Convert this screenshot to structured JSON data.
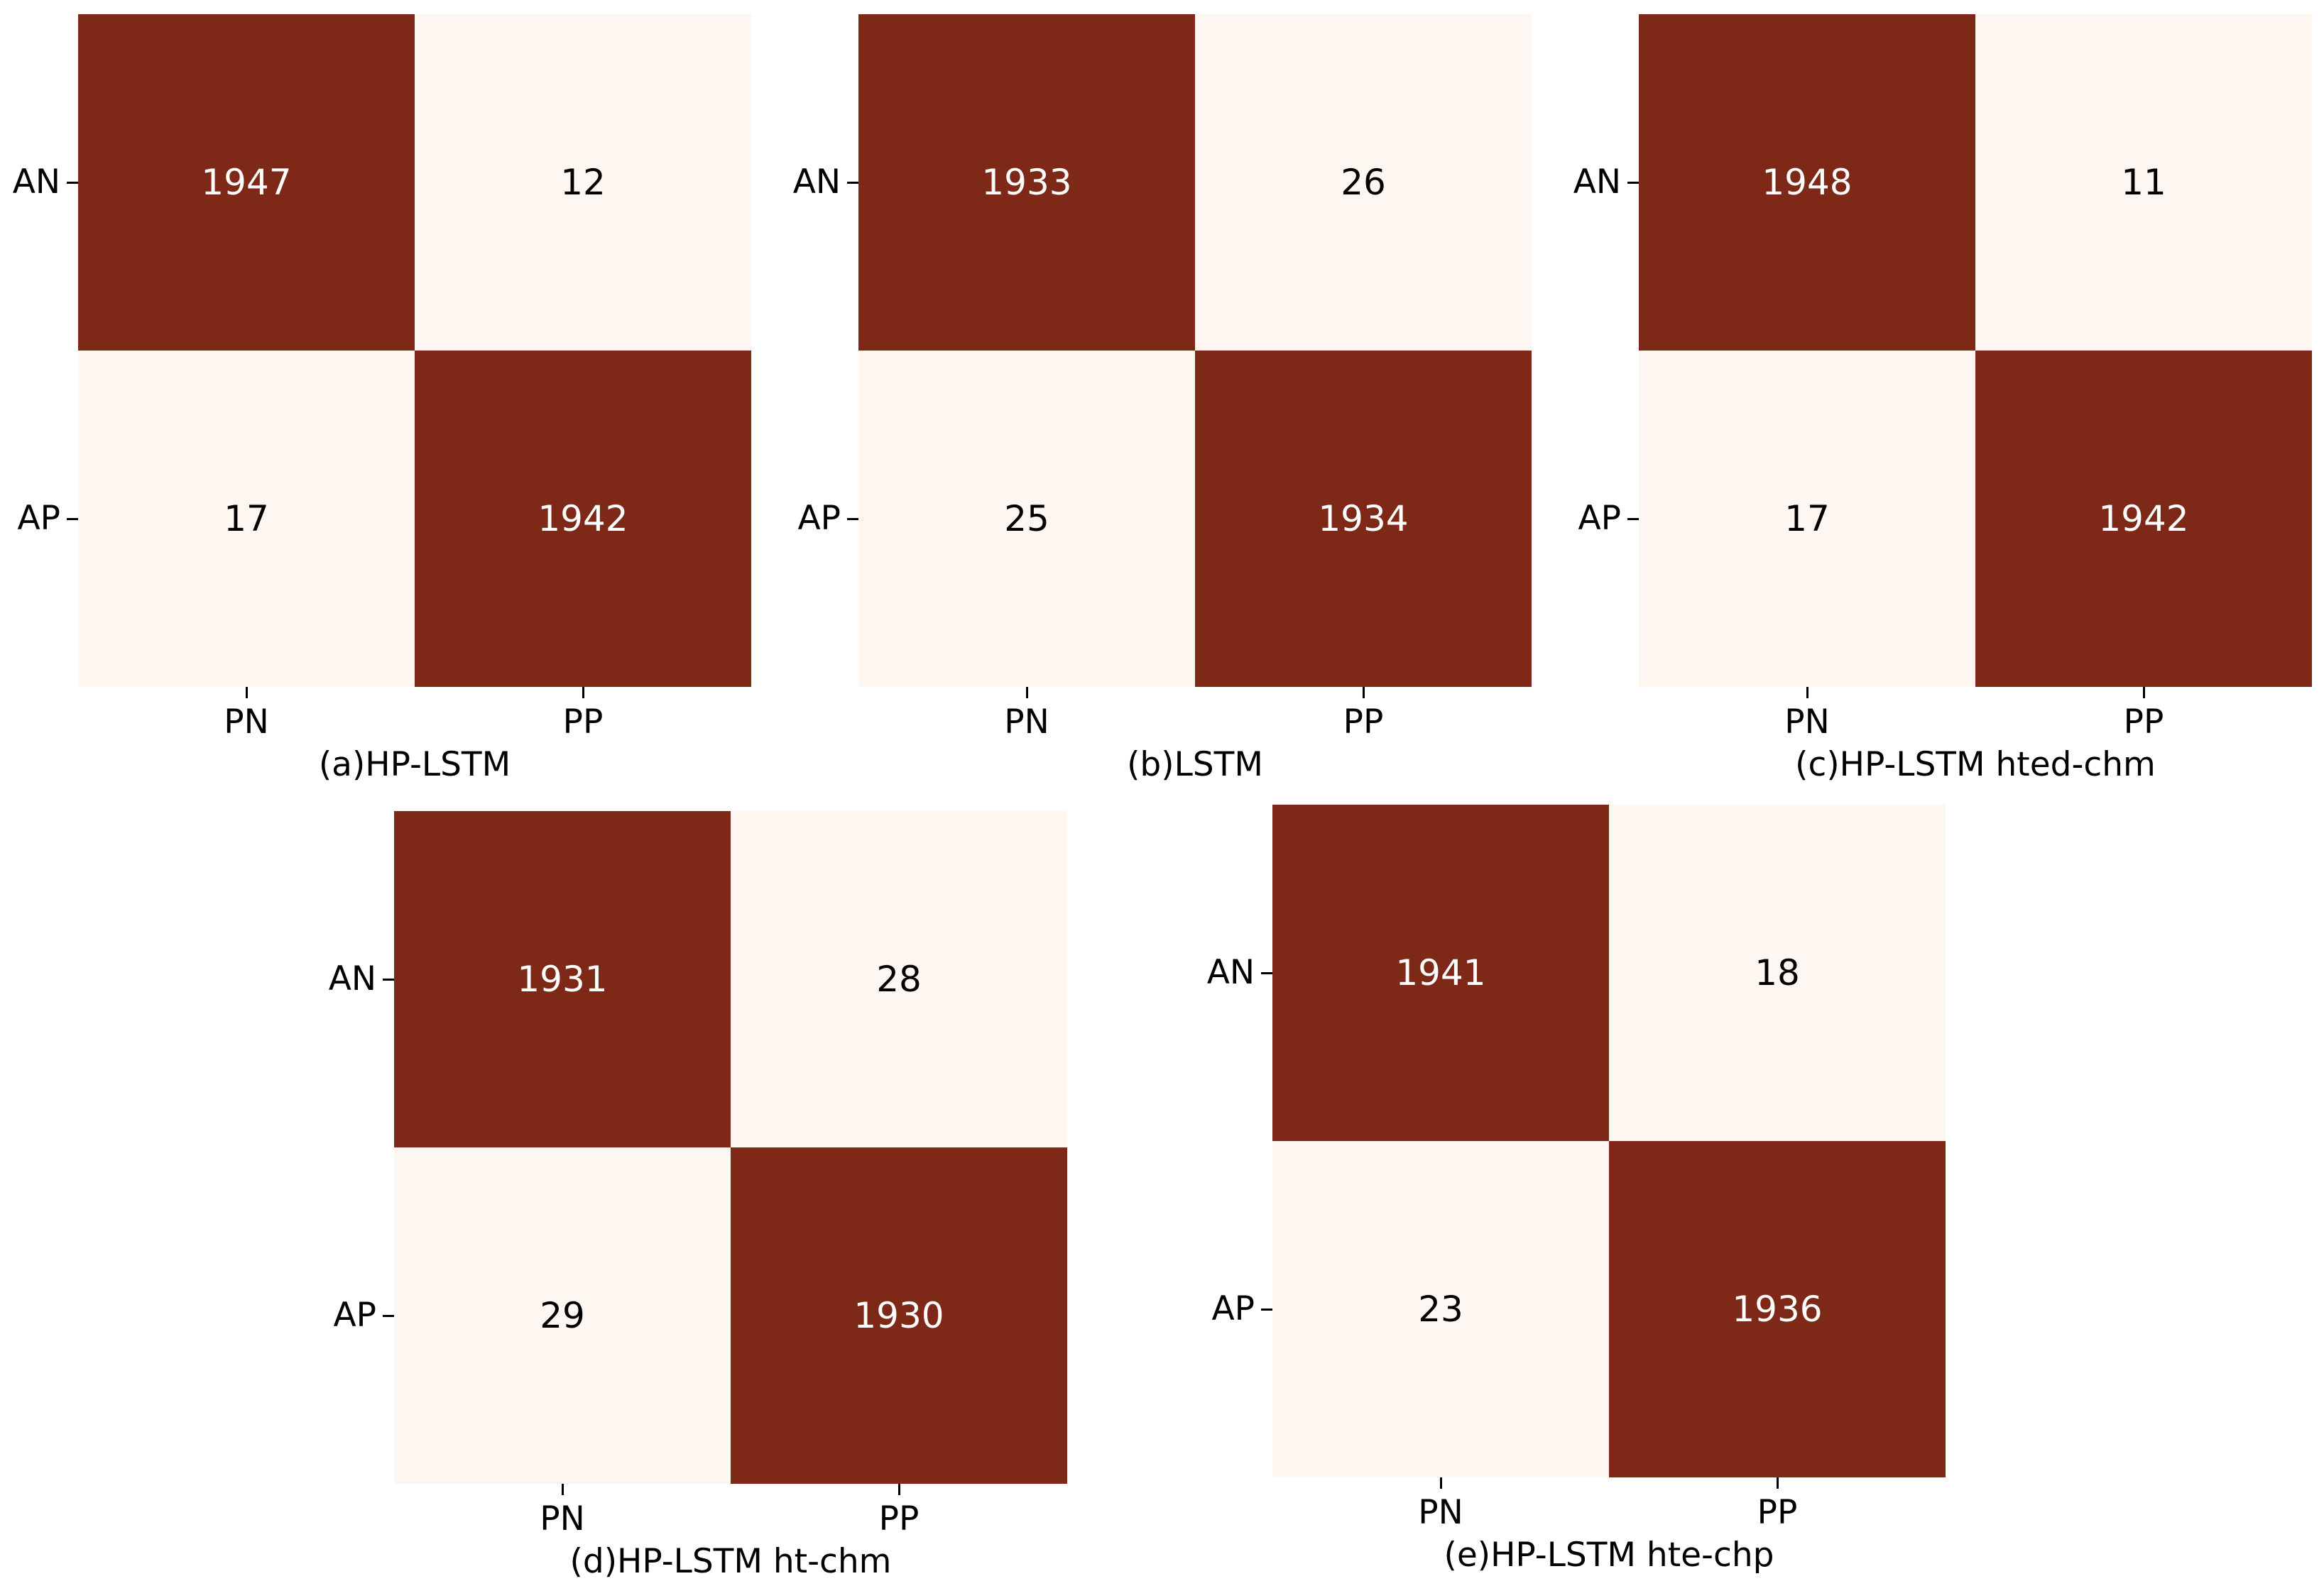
{
  "colors": {
    "high": "#7e2818",
    "low": "#fef6f0",
    "text_on_high": "#ffffff",
    "text_on_low": "#000000"
  },
  "chart_data": [
    {
      "type": "heatmap",
      "caption": "(a)HP-LSTM",
      "row_labels": [
        "AN",
        "AP"
      ],
      "col_labels": [
        "PN",
        "PP"
      ],
      "values": [
        [
          1947,
          12
        ],
        [
          17,
          1942
        ]
      ]
    },
    {
      "type": "heatmap",
      "caption": "(b)LSTM",
      "row_labels": [
        "AN",
        "AP"
      ],
      "col_labels": [
        "PN",
        "PP"
      ],
      "values": [
        [
          1933,
          26
        ],
        [
          25,
          1934
        ]
      ]
    },
    {
      "type": "heatmap",
      "caption": "(c)HP-LSTM hted-chm",
      "row_labels": [
        "AN",
        "AP"
      ],
      "col_labels": [
        "PN",
        "PP"
      ],
      "values": [
        [
          1948,
          11
        ],
        [
          17,
          1942
        ]
      ]
    },
    {
      "type": "heatmap",
      "caption": "(d)HP-LSTM ht-chm",
      "row_labels": [
        "AN",
        "AP"
      ],
      "col_labels": [
        "PN",
        "PP"
      ],
      "values": [
        [
          1931,
          28
        ],
        [
          29,
          1930
        ]
      ]
    },
    {
      "type": "heatmap",
      "caption": "(e)HP-LSTM hte-chp",
      "row_labels": [
        "AN",
        "AP"
      ],
      "col_labels": [
        "PN",
        "PP"
      ],
      "values": [
        [
          1941,
          18
        ],
        [
          23,
          1936
        ]
      ]
    }
  ]
}
